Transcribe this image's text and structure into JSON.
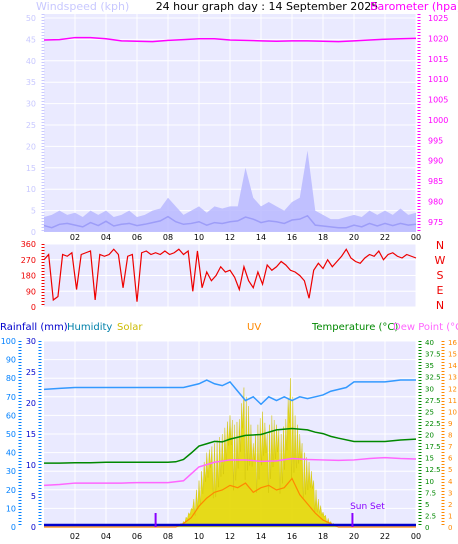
{
  "title": "24 hour graph day : 14 September 2025",
  "colors": {
    "wind": "#0000cc",
    "wind_gust": "#b8b8ff",
    "wind_left_axis": "#c8c8ff",
    "barometer": "#ff00ff",
    "direction": "#ee0000",
    "direction_axis": "#ee0000",
    "rainfall": "#0000cc",
    "rain_axis": "#0080ff",
    "humidity": "#3399ff",
    "solar": "#e6d800",
    "uv": "#ff8800",
    "temperature": "#008800",
    "dew_point": "#ff66ff",
    "sun_marker": "#8800ff",
    "panel_bg": "#eaeaff",
    "grid": "#ffffff"
  },
  "x_ticks": [
    "02",
    "04",
    "06",
    "08",
    "10",
    "12",
    "14",
    "16",
    "18",
    "20",
    "22",
    "00"
  ],
  "chart_data": [
    {
      "type": "line",
      "name": "wind-barometer",
      "left_axis_label": "Windspeed (kph)",
      "right_axis_label": "Barometer (hpa)",
      "left_ticks": [
        "0",
        "5",
        "10",
        "15",
        "20",
        "25",
        "30",
        "35",
        "40",
        "45",
        "50"
      ],
      "right_ticks": [
        "975",
        "980",
        "985",
        "990",
        "995",
        "1000",
        "1005",
        "1010",
        "1015",
        "1020",
        "1025"
      ],
      "left_range": [
        0,
        50
      ],
      "right_range": [
        972.5,
        1025
      ],
      "x_range_hours": [
        0,
        24
      ],
      "series": [
        {
          "name": "barometer",
          "axis": "right",
          "x": [
            0,
            1,
            2,
            3,
            4,
            5,
            6,
            7,
            8,
            9,
            10,
            11,
            12,
            13,
            14,
            15,
            16,
            17,
            18,
            19,
            20,
            21,
            22,
            23,
            24
          ],
          "y": [
            1019.6,
            1019.7,
            1020.2,
            1020.2,
            1019.9,
            1019.4,
            1019.3,
            1019.2,
            1019.5,
            1019.7,
            1019.9,
            1019.9,
            1019.6,
            1019.5,
            1019.4,
            1019.3,
            1019.4,
            1019.4,
            1019.3,
            1019.2,
            1019.4,
            1019.6,
            1019.8,
            1019.9,
            1020.0
          ]
        },
        {
          "name": "wind_speed",
          "axis": "left",
          "x": [
            0,
            0.5,
            1,
            1.5,
            2,
            2.5,
            3,
            3.5,
            4,
            4.5,
            5,
            5.5,
            6,
            6.5,
            7,
            7.5,
            8,
            8.5,
            9,
            9.5,
            10,
            10.5,
            11,
            11.5,
            12,
            12.5,
            13,
            13.5,
            14,
            14.5,
            15,
            15.5,
            16,
            16.5,
            17,
            17.5,
            18,
            18.5,
            19,
            19.5,
            20,
            20.5,
            21,
            21.5,
            22,
            22.5,
            23,
            23.5,
            24
          ],
          "y": [
            1.5,
            1.0,
            1.8,
            2.0,
            1.6,
            1.2,
            2.2,
            1.5,
            2.5,
            1.4,
            1.8,
            2.0,
            1.5,
            1.8,
            2.2,
            2.6,
            3.6,
            2.4,
            1.8,
            2.0,
            2.4,
            1.6,
            2.2,
            2.0,
            2.4,
            2.6,
            3.5,
            3.0,
            2.2,
            2.6,
            2.4,
            2.0,
            2.8,
            3.0,
            3.8,
            1.6,
            1.4,
            1.2,
            1.0,
            1.0,
            1.6,
            1.2,
            2.0,
            1.4,
            2.0,
            1.5,
            2.0,
            1.6,
            1.8
          ]
        },
        {
          "name": "wind_gust",
          "axis": "left",
          "x": [
            0,
            0.5,
            1,
            1.5,
            2,
            2.5,
            3,
            3.5,
            4,
            4.5,
            5,
            5.5,
            6,
            6.5,
            7,
            7.5,
            8,
            8.5,
            9,
            9.5,
            10,
            10.5,
            11,
            11.5,
            12,
            12.5,
            13,
            13.5,
            14,
            14.5,
            15,
            15.5,
            16,
            16.5,
            17,
            17.5,
            18,
            18.5,
            19,
            19.5,
            20,
            20.5,
            21,
            21.5,
            22,
            22.5,
            23,
            23.5,
            24
          ],
          "y": [
            3.5,
            4,
            5,
            4,
            4.5,
            3.5,
            5,
            4,
            5,
            3.5,
            4,
            5,
            3.5,
            4,
            5,
            5.5,
            8,
            6,
            4,
            5,
            6,
            4.5,
            6,
            5.5,
            6,
            6,
            15,
            8,
            6,
            7,
            6,
            5,
            7,
            8,
            19,
            5,
            4,
            3,
            3,
            3.5,
            4,
            3.5,
            5,
            4,
            5,
            4,
            5.5,
            4,
            4.5
          ]
        }
      ]
    },
    {
      "type": "line",
      "name": "wind-direction",
      "left_ticks": [
        "0",
        "90",
        "180",
        "270",
        "360"
      ],
      "left_range": [
        0,
        360
      ],
      "right_labels": [
        "N",
        "W",
        "S",
        "E",
        "N"
      ],
      "series": [
        {
          "name": "wind_direction",
          "x": [
            0,
            0.3,
            0.6,
            0.9,
            1.2,
            1.5,
            1.8,
            2.1,
            2.4,
            2.7,
            3.0,
            3.3,
            3.6,
            3.9,
            4.2,
            4.5,
            4.8,
            5.1,
            5.4,
            5.7,
            6.0,
            6.3,
            6.6,
            6.9,
            7.2,
            7.5,
            7.8,
            8.1,
            8.4,
            8.7,
            9.0,
            9.3,
            9.6,
            9.9,
            10.2,
            10.5,
            10.8,
            11.1,
            11.4,
            11.7,
            12.0,
            12.3,
            12.6,
            12.9,
            13.2,
            13.5,
            13.8,
            14.1,
            14.4,
            14.7,
            15.0,
            15.3,
            15.6,
            15.9,
            16.2,
            16.5,
            16.8,
            17.1,
            17.4,
            17.7,
            18.0,
            18.3,
            18.6,
            18.9,
            19.2,
            19.5,
            19.8,
            20.1,
            20.4,
            20.7,
            21.0,
            21.3,
            21.6,
            21.9,
            22.2,
            22.5,
            22.8,
            23.1,
            23.4,
            23.7,
            24.0
          ],
          "y": [
            270,
            300,
            40,
            60,
            300,
            290,
            310,
            100,
            300,
            310,
            320,
            40,
            300,
            290,
            300,
            330,
            300,
            110,
            290,
            300,
            30,
            310,
            320,
            300,
            310,
            300,
            320,
            300,
            310,
            330,
            300,
            320,
            90,
            320,
            110,
            200,
            150,
            180,
            230,
            200,
            210,
            170,
            100,
            230,
            150,
            110,
            200,
            130,
            240,
            210,
            230,
            260,
            240,
            210,
            200,
            180,
            150,
            50,
            210,
            250,
            220,
            270,
            230,
            260,
            290,
            330,
            280,
            260,
            250,
            280,
            300,
            290,
            320,
            270,
            300,
            310,
            290,
            280,
            300,
            290,
            280
          ]
        }
      ]
    },
    {
      "type": "line",
      "name": "rain-humidity-solar-uv-temperature-dewpoint",
      "labels": {
        "rainfall": "Rainfall (mm)",
        "humidity": "Humidity",
        "solar": "Solar",
        "uv": "UV",
        "temperature": "Temperature (°C)",
        "dew_point": "Dew Point (°C)"
      },
      "humidity_ticks": [
        "0",
        "10",
        "20",
        "30",
        "40",
        "50",
        "60",
        "70",
        "80",
        "90",
        "100"
      ],
      "rain_ticks": [
        "0",
        "5",
        "10",
        "15",
        "20",
        "25",
        "30"
      ],
      "temperature_ticks": [
        "0",
        "2.5",
        "5",
        "7.5",
        "10",
        "12.5",
        "15",
        "17.5",
        "20",
        "22.5",
        "25",
        "27.5",
        "30",
        "32.5",
        "35",
        "37.5",
        "40"
      ],
      "uv_ticks": [
        "0",
        "1",
        "2",
        "3",
        "4",
        "5",
        "6",
        "7",
        "8",
        "9",
        "10",
        "11",
        "12",
        "13",
        "14",
        "15",
        "16"
      ],
      "humidity_range": [
        0,
        100
      ],
      "temperature_range": [
        0,
        40
      ],
      "uv_range": [
        0,
        16
      ],
      "sun_labels": {
        "sunset": "Sun Set"
      },
      "series": [
        {
          "name": "humidity",
          "x": [
            0,
            1,
            2,
            3,
            4,
            5,
            6,
            7,
            8,
            9,
            10,
            10.5,
            11,
            11.5,
            12,
            12.5,
            13,
            13.5,
            14,
            14.5,
            15,
            15.5,
            16,
            16.5,
            17,
            17.5,
            18,
            18.5,
            19,
            19.5,
            20,
            21,
            22,
            23,
            24
          ],
          "y": [
            74,
            74.5,
            75,
            75,
            75,
            75,
            75,
            75,
            75,
            75,
            77,
            79,
            77,
            76,
            78,
            73,
            68,
            70,
            66,
            70,
            68,
            70,
            68,
            70,
            69,
            70,
            71,
            73,
            74,
            75,
            78,
            78,
            78,
            79,
            79
          ]
        },
        {
          "name": "temperature",
          "x": [
            0,
            1,
            2,
            3,
            4,
            5,
            6,
            7,
            8,
            8.5,
            9,
            9.5,
            10,
            10.5,
            11,
            11.5,
            12,
            13,
            14,
            15,
            16,
            17,
            17.5,
            18,
            18.5,
            19,
            20,
            21,
            22,
            23,
            24
          ],
          "y": [
            13.8,
            13.8,
            13.9,
            13.9,
            14.0,
            14.0,
            14.0,
            14.0,
            14.0,
            14.1,
            14.6,
            16.0,
            17.5,
            18.0,
            18.5,
            18.4,
            19.0,
            19.8,
            20.0,
            21.0,
            21.3,
            21.0,
            20.5,
            20.2,
            19.6,
            19.2,
            18.5,
            18.5,
            18.5,
            18.8,
            19.0
          ]
        },
        {
          "name": "dew_point",
          "x": [
            0,
            1,
            2,
            3,
            4,
            5,
            6,
            7,
            8,
            9,
            9.5,
            10,
            11,
            12,
            13,
            14,
            15,
            16,
            17,
            18,
            19,
            20,
            21,
            22,
            23,
            24
          ],
          "y": [
            9.0,
            9.2,
            9.5,
            9.5,
            9.5,
            9.5,
            9.6,
            9.6,
            9.6,
            10.0,
            11.5,
            13.0,
            14.0,
            14.5,
            14.5,
            14.2,
            14.3,
            14.8,
            14.6,
            14.5,
            14.4,
            14.5,
            14.8,
            15.0,
            14.8,
            14.7
          ]
        },
        {
          "name": "rainfall",
          "x": [
            0,
            24
          ],
          "y": [
            0,
            0
          ]
        },
        {
          "name": "solar",
          "x": [
            0,
            8.5,
            9,
            9.5,
            10,
            10.5,
            11,
            11.5,
            12,
            12.3,
            12.6,
            12.9,
            13.2,
            13.5,
            13.8,
            14.1,
            14.4,
            14.7,
            15,
            15.3,
            15.6,
            15.9,
            16.2,
            16.5,
            16.8,
            17.1,
            17.4,
            17.7,
            18,
            18.5,
            19,
            24
          ],
          "y": [
            0,
            0,
            3,
            10,
            25,
            40,
            45,
            50,
            60,
            55,
            58,
            75,
            65,
            45,
            55,
            62,
            50,
            60,
            55,
            50,
            58,
            80,
            60,
            50,
            40,
            35,
            25,
            15,
            8,
            3,
            0,
            0
          ]
        },
        {
          "name": "uv",
          "x": [
            0,
            8.5,
            9,
            9.5,
            10,
            10.5,
            11,
            11.5,
            12,
            12.5,
            13,
            13.5,
            14,
            14.5,
            15,
            15.5,
            16,
            16.5,
            17,
            17.5,
            18,
            18.5,
            19,
            24
          ],
          "y": [
            0,
            0,
            0.3,
            0.8,
            1.8,
            2.5,
            3.0,
            3.2,
            3.6,
            3.4,
            3.8,
            3.0,
            3.4,
            3.6,
            3.2,
            3.4,
            4.2,
            2.8,
            2.0,
            1.2,
            0.6,
            0.3,
            0,
            0
          ]
        }
      ]
    }
  ]
}
